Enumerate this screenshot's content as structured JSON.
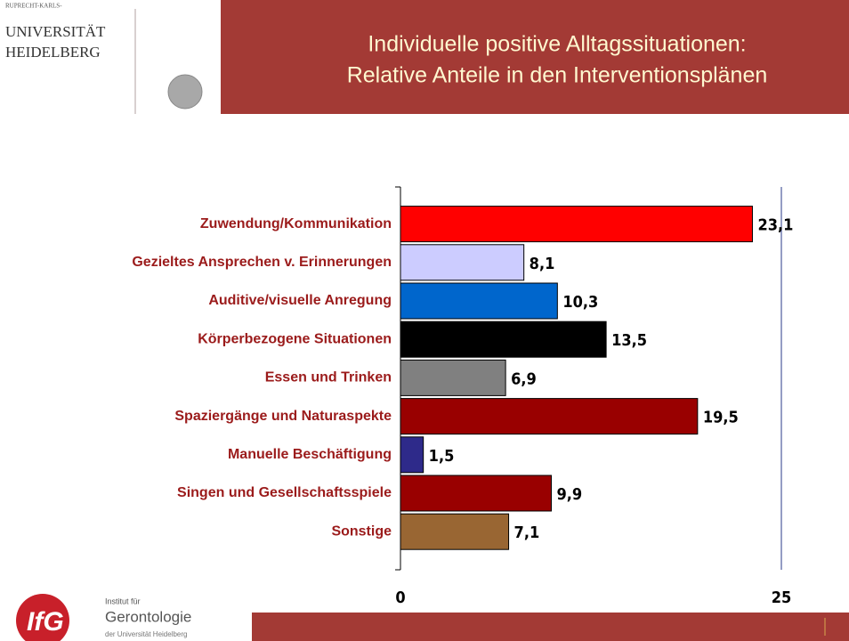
{
  "header": {
    "university": [
      "RUPRECHT-KARLS-",
      "UNIVERSITÄT",
      "HEIDELBERG"
    ],
    "title": [
      "Individuelle positive Alltagssituationen:",
      "Relative Anteile in den Interventionsplänen"
    ]
  },
  "chart_data": {
    "type": "barh",
    "categories": [
      "Zuwendung/Kommunikation",
      "Gezieltes Ansprechen v. Erinnerungen",
      "Auditive/visuelle Anregung",
      "Körperbezogene Situationen",
      "Essen und Trinken",
      "Spaziergänge und Naturaspekte",
      "Manuelle Beschäftigung",
      "Singen und Gesellschaftsspiele",
      "Sonstige"
    ],
    "values": [
      23.1,
      8.1,
      10.3,
      13.5,
      6.9,
      19.5,
      1.5,
      9.9,
      7.1
    ],
    "value_labels": [
      "23,1",
      "8,1",
      "10,3",
      "13,5",
      "6,9",
      "19,5",
      "1,5",
      "9,9",
      "7,1"
    ],
    "colors": [
      "#ff0000",
      "#ccccff",
      "#0066cc",
      "#000000",
      "#808080",
      "#990000",
      "#2e2a8a",
      "#990000",
      "#996633"
    ],
    "xlim": [
      0,
      25
    ],
    "xticks": [
      0,
      25
    ]
  },
  "footer": {
    "institute": [
      "Institut für",
      "Gerontologie",
      "der Universität Heidelberg"
    ]
  }
}
